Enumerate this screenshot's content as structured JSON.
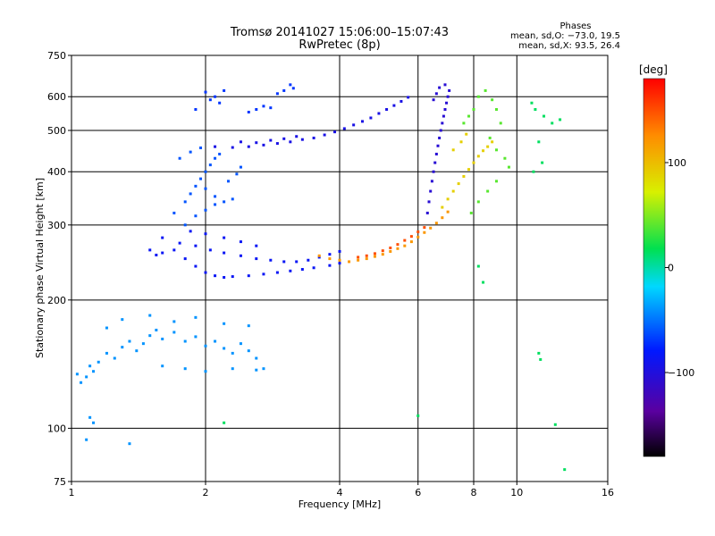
{
  "chart_data": {
    "type": "scatter",
    "title_line1": "Tromsø 20141027 15:06:00–15:07:43",
    "title_line2": "RwPretec (8p)",
    "stats": {
      "heading": "Phases",
      "line_o": "mean, sd,O: −73.0, 19.5",
      "line_x": "mean, sd,X:  93.5, 26.4"
    },
    "xlabel": "Frequency [MHz]",
    "ylabel": "Stationary phase Virtual Height [km]",
    "x_scale": "log",
    "y_scale": "log",
    "xlim": [
      1,
      16
    ],
    "ylim": [
      75,
      750
    ],
    "x_ticks": [
      "1",
      "2",
      "4",
      "6",
      "8",
      "10",
      "16"
    ],
    "y_ticks": [
      "75",
      "100",
      "200",
      "300",
      "400",
      "500",
      "600",
      "750"
    ],
    "x_gridlines": [
      2,
      4,
      6,
      8,
      10
    ],
    "y_gridlines": [
      100,
      200,
      300,
      400,
      500,
      600
    ],
    "colorbar": {
      "label": "[deg]",
      "range": [
        -180,
        180
      ],
      "ticks": [
        "100",
        "0",
        "−100"
      ],
      "tick_values": [
        100,
        0,
        -100
      ]
    },
    "series": [
      {
        "points": [
          [
            1.03,
            134
          ],
          [
            1.05,
            128
          ],
          [
            1.08,
            132
          ],
          [
            1.1,
            140
          ],
          [
            1.12,
            136
          ],
          [
            1.15,
            143
          ],
          [
            1.2,
            150
          ],
          [
            1.25,
            146
          ],
          [
            1.3,
            155
          ],
          [
            1.35,
            160
          ],
          [
            1.4,
            152
          ],
          [
            1.45,
            158
          ],
          [
            1.5,
            165
          ],
          [
            1.55,
            170
          ],
          [
            1.6,
            162
          ],
          [
            1.7,
            168
          ],
          [
            1.8,
            160
          ],
          [
            1.9,
            164
          ],
          [
            2.0,
            156
          ],
          [
            2.1,
            160
          ],
          [
            2.2,
            154
          ],
          [
            2.3,
            150
          ],
          [
            2.4,
            158
          ],
          [
            2.5,
            152
          ],
          [
            2.6,
            146
          ],
          [
            2.7,
            138
          ],
          [
            1.3,
            180
          ],
          [
            1.5,
            184
          ],
          [
            1.7,
            178
          ],
          [
            1.9,
            182
          ],
          [
            2.2,
            176
          ],
          [
            2.5,
            174
          ],
          [
            1.2,
            172
          ],
          [
            1.6,
            140
          ],
          [
            1.8,
            138
          ],
          [
            2.0,
            136
          ],
          [
            2.3,
            138
          ],
          [
            2.6,
            137
          ],
          [
            1.1,
            106
          ],
          [
            1.12,
            103
          ],
          [
            1.08,
            94
          ],
          [
            1.35,
            92
          ]
        ],
        "phase": -40
      },
      {
        "points": [
          [
            1.5,
            262
          ],
          [
            1.55,
            255
          ],
          [
            1.6,
            258
          ],
          [
            1.7,
            262
          ],
          [
            1.8,
            250
          ],
          [
            1.9,
            240
          ],
          [
            2.0,
            232
          ],
          [
            2.1,
            228
          ],
          [
            2.2,
            226
          ],
          [
            2.3,
            227
          ],
          [
            2.5,
            228
          ],
          [
            2.7,
            230
          ],
          [
            2.9,
            232
          ],
          [
            3.1,
            234
          ],
          [
            3.3,
            236
          ],
          [
            3.5,
            238
          ],
          [
            3.8,
            241
          ],
          [
            4.0,
            244
          ],
          [
            1.6,
            280
          ],
          [
            1.75,
            272
          ],
          [
            1.9,
            268
          ],
          [
            2.05,
            262
          ],
          [
            2.2,
            258
          ],
          [
            2.4,
            254
          ],
          [
            2.6,
            250
          ],
          [
            2.8,
            248
          ],
          [
            3.0,
            246
          ],
          [
            3.2,
            246
          ],
          [
            3.4,
            248
          ],
          [
            3.6,
            252
          ],
          [
            3.8,
            256
          ],
          [
            4.0,
            260
          ],
          [
            1.85,
            290
          ],
          [
            2.0,
            286
          ],
          [
            2.2,
            280
          ],
          [
            2.4,
            274
          ],
          [
            2.6,
            268
          ]
        ],
        "phase": -85
      },
      {
        "points": [
          [
            1.7,
            320
          ],
          [
            1.8,
            340
          ],
          [
            1.85,
            355
          ],
          [
            1.9,
            370
          ],
          [
            1.95,
            385
          ],
          [
            2.0,
            400
          ],
          [
            2.05,
            415
          ],
          [
            2.1,
            430
          ],
          [
            2.15,
            440
          ],
          [
            2.0,
            365
          ],
          [
            2.1,
            350
          ],
          [
            2.2,
            340
          ],
          [
            2.3,
            345
          ],
          [
            2.25,
            380
          ],
          [
            2.35,
            395
          ],
          [
            2.4,
            410
          ],
          [
            1.8,
            300
          ],
          [
            1.9,
            315
          ],
          [
            2.0,
            325
          ],
          [
            2.1,
            335
          ],
          [
            1.75,
            430
          ],
          [
            1.85,
            445
          ],
          [
            1.95,
            455
          ]
        ],
        "phase": -60
      },
      {
        "points": [
          [
            2.1,
            458
          ],
          [
            2.3,
            456
          ],
          [
            2.5,
            458
          ],
          [
            2.7,
            462
          ],
          [
            2.9,
            466
          ],
          [
            3.1,
            470
          ],
          [
            3.3,
            476
          ],
          [
            3.5,
            480
          ],
          [
            3.7,
            488
          ],
          [
            3.9,
            496
          ],
          [
            4.1,
            505
          ],
          [
            4.3,
            515
          ],
          [
            4.5,
            525
          ],
          [
            4.7,
            535
          ],
          [
            4.9,
            548
          ],
          [
            5.1,
            560
          ],
          [
            5.3,
            572
          ],
          [
            5.5,
            585
          ],
          [
            5.7,
            598
          ],
          [
            2.4,
            470
          ],
          [
            2.6,
            468
          ],
          [
            2.8,
            474
          ],
          [
            3.0,
            478
          ],
          [
            3.2,
            484
          ]
        ],
        "phase": -95
      },
      {
        "points": [
          [
            2.5,
            552
          ],
          [
            2.6,
            560
          ],
          [
            2.7,
            570
          ],
          [
            2.8,
            565
          ],
          [
            2.0,
            615
          ],
          [
            2.05,
            590
          ],
          [
            2.1,
            600
          ],
          [
            2.15,
            580
          ],
          [
            2.2,
            620
          ],
          [
            1.9,
            560
          ],
          [
            2.9,
            610
          ],
          [
            3.0,
            620
          ],
          [
            3.1,
            640
          ],
          [
            3.15,
            628
          ]
        ],
        "phase": -70
      },
      {
        "points": [
          [
            3.6,
            254
          ],
          [
            3.8,
            250
          ],
          [
            4.0,
            248
          ],
          [
            4.2,
            246
          ],
          [
            4.4,
            248
          ],
          [
            4.6,
            250
          ],
          [
            4.8,
            253
          ],
          [
            5.0,
            256
          ],
          [
            5.2,
            260
          ],
          [
            5.4,
            264
          ],
          [
            5.6,
            268
          ],
          [
            5.8,
            274
          ],
          [
            6.0,
            281
          ],
          [
            6.2,
            288
          ],
          [
            6.4,
            295
          ],
          [
            6.6,
            303
          ],
          [
            6.8,
            312
          ],
          [
            7.0,
            322
          ]
        ],
        "phase": 120
      },
      {
        "points": [
          [
            4.4,
            252
          ],
          [
            4.6,
            254
          ],
          [
            4.8,
            257
          ],
          [
            5.0,
            261
          ],
          [
            5.2,
            265
          ],
          [
            5.4,
            270
          ],
          [
            5.6,
            276
          ],
          [
            5.8,
            282
          ],
          [
            6.0,
            289
          ],
          [
            6.2,
            296
          ]
        ],
        "phase": 150
      },
      {
        "points": [
          [
            6.8,
            330
          ],
          [
            7.0,
            345
          ],
          [
            7.2,
            360
          ],
          [
            7.4,
            375
          ],
          [
            7.6,
            390
          ],
          [
            7.8,
            405
          ],
          [
            8.0,
            420
          ],
          [
            8.2,
            435
          ],
          [
            8.4,
            448
          ],
          [
            8.6,
            458
          ],
          [
            8.8,
            470
          ],
          [
            7.2,
            450
          ],
          [
            7.5,
            470
          ],
          [
            7.7,
            490
          ]
        ],
        "phase": 90
      },
      {
        "points": [
          [
            6.3,
            320
          ],
          [
            6.35,
            340
          ],
          [
            6.4,
            360
          ],
          [
            6.45,
            380
          ],
          [
            6.5,
            400
          ],
          [
            6.55,
            420
          ],
          [
            6.6,
            440
          ],
          [
            6.65,
            460
          ],
          [
            6.7,
            480
          ],
          [
            6.75,
            500
          ],
          [
            6.8,
            520
          ],
          [
            6.85,
            540
          ],
          [
            6.9,
            560
          ],
          [
            6.95,
            580
          ],
          [
            7.0,
            600
          ],
          [
            7.05,
            620
          ],
          [
            6.9,
            640
          ],
          [
            6.7,
            630
          ],
          [
            6.6,
            610
          ],
          [
            6.5,
            590
          ]
        ],
        "phase": -105
      },
      {
        "points": [
          [
            7.6,
            520
          ],
          [
            7.8,
            540
          ],
          [
            8.0,
            560
          ],
          [
            8.2,
            600
          ],
          [
            8.5,
            620
          ],
          [
            8.8,
            590
          ],
          [
            9.0,
            560
          ],
          [
            9.2,
            520
          ],
          [
            8.7,
            480
          ],
          [
            9.0,
            450
          ],
          [
            9.4,
            430
          ],
          [
            9.6,
            410
          ],
          [
            9.0,
            380
          ],
          [
            8.6,
            360
          ],
          [
            8.2,
            340
          ],
          [
            7.9,
            320
          ]
        ],
        "phase": 40
      },
      {
        "points": [
          [
            10.8,
            580
          ],
          [
            11.0,
            560
          ],
          [
            11.5,
            540
          ],
          [
            12.0,
            520
          ],
          [
            12.5,
            530
          ],
          [
            11.2,
            470
          ],
          [
            11.4,
            420
          ],
          [
            10.9,
            400
          ],
          [
            11.2,
            150
          ],
          [
            11.3,
            145
          ],
          [
            12.2,
            102
          ],
          [
            12.8,
            80
          ],
          [
            8.4,
            220
          ],
          [
            8.2,
            240
          ],
          [
            6.0,
            107
          ],
          [
            2.2,
            103
          ]
        ],
        "phase": 15
      }
    ]
  }
}
